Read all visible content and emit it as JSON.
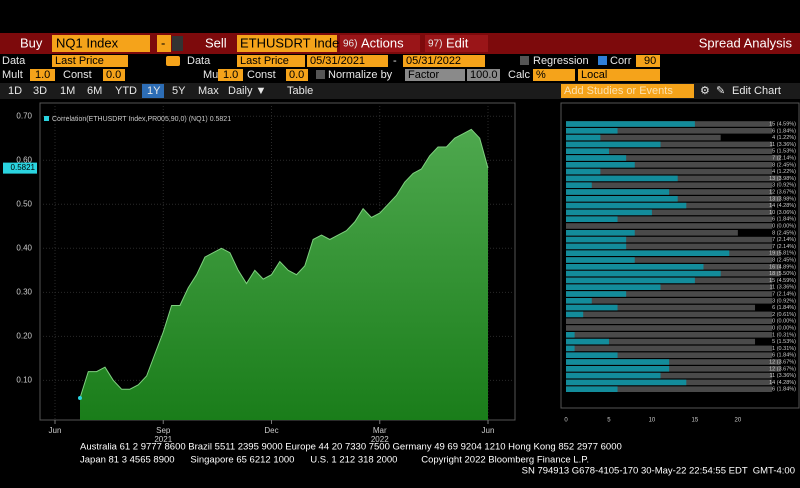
{
  "header": {
    "buy": "Buy",
    "buy_ticker": "NQ1 Index",
    "buy_dash": "-",
    "sell": "Sell",
    "sell_ticker": "ETHUSDRT Inde",
    "actions_code": "96)",
    "actions": "Actions",
    "edit_code": "97)",
    "edit": "Edit",
    "title": "Spread Analysis"
  },
  "settings_row": {
    "data_left": "Data",
    "field_left": "Last Price",
    "data_right": "Data",
    "field_right": "Last Price",
    "start_date": "05/31/2021",
    "dash": "-",
    "end_date": "05/31/2022",
    "regression": "Regression",
    "corr": "Corr",
    "corr_period": "90"
  },
  "transform_row": {
    "mult_left": "Mult",
    "mult_left_value": "1.0",
    "const_left": "Const",
    "const_left_value": "0.0",
    "mult_right": "Mult",
    "mult_right_value": "1.0",
    "const_right": "Const",
    "const_right_value": "0.0",
    "normalize": "Normalize by",
    "normalize_mode": "Factor",
    "factor": "100.0",
    "calc": "Calc",
    "calc_mode": "%",
    "timezone": "Local"
  },
  "range_bar": {
    "ranges": [
      "1D",
      "3D",
      "1M",
      "6M",
      "YTD",
      "1Y",
      "5Y",
      "Max"
    ],
    "frequency": "Daily ▼",
    "table": "Table",
    "studies": "Add Studies or Events",
    "edit_chart": "Edit Chart"
  },
  "chart_data": [
    {
      "type": "area",
      "legend": "Correlation(ETHUSDRT Index,PR005,90,0) (NQ1) 0.5821",
      "color": "#3fa03f",
      "categories": [
        "Jun",
        null,
        null,
        null,
        null,
        null,
        null,
        null,
        null,
        null,
        null,
        null,
        null,
        "Sep",
        null,
        null,
        null,
        null,
        null,
        null,
        null,
        null,
        null,
        null,
        null,
        null,
        "Dec",
        null,
        null,
        null,
        null,
        null,
        null,
        null,
        null,
        null,
        null,
        null,
        null,
        "Mar",
        null,
        null,
        null,
        null,
        null,
        null,
        null,
        null,
        null,
        null,
        null,
        null,
        "Jun"
      ],
      "year_labels": [
        "2021",
        "2022"
      ],
      "values": [
        null,
        null,
        null,
        0.06,
        0.12,
        0.12,
        0.13,
        0.1,
        0.08,
        0.08,
        0.09,
        0.11,
        0.16,
        0.21,
        0.27,
        0.27,
        0.31,
        0.34,
        0.38,
        0.39,
        0.4,
        0.39,
        0.35,
        0.32,
        0.35,
        0.33,
        0.34,
        0.37,
        0.35,
        0.34,
        0.36,
        0.42,
        0.43,
        0.42,
        0.43,
        0.44,
        0.46,
        0.49,
        0.47,
        0.48,
        0.5,
        0.52,
        0.55,
        0.57,
        0.58,
        0.61,
        0.63,
        0.63,
        0.65,
        0.66,
        0.67,
        0.65,
        0.5821
      ],
      "ylim": [
        0.01,
        0.73
      ],
      "yticks": [
        {
          "value": 0.1,
          "label": "0.10"
        },
        {
          "value": 0.2,
          "label": "0.20"
        },
        {
          "value": 0.3,
          "label": "0.30"
        },
        {
          "value": 0.4,
          "label": "0.40"
        },
        {
          "value": 0.5,
          "label": "0.50"
        },
        {
          "value": 0.6,
          "label": "0.60"
        },
        {
          "value": 0.7,
          "label": "0.70"
        }
      ],
      "grid": true
    },
    {
      "type": "hbar",
      "xlim": [
        0,
        27
      ],
      "xticks": [
        0,
        5,
        10,
        15,
        20
      ],
      "series": [
        {
          "color": "#138c9b",
          "values": [
            15,
            6,
            4,
            11,
            5,
            7,
            8,
            4,
            13,
            3,
            12,
            13,
            14,
            10,
            6,
            0,
            8,
            7,
            7,
            19,
            8,
            16,
            18,
            15,
            11,
            7,
            3,
            6,
            2,
            0,
            0,
            1,
            5,
            1,
            6,
            12,
            12,
            11,
            14,
            6
          ],
          "value_labels": [
            "15 (4.59%)",
            "6 (1.84%)",
            "4 (1.22%)",
            "11 (3.36%)",
            "5 (1.53%)",
            "7 (2.14%)",
            "8 (2.45%)",
            "4 (1.22%)",
            "13 (3.98%)",
            "3 (0.92%)",
            "12 (3.67%)",
            "13 (3.98%)",
            "14 (4.28%)",
            "10 (3.06%)",
            "6 (1.84%)",
            "0 (0.00%)",
            "8 (2.45%)",
            "7 (2.14%)",
            "7 (2.14%)",
            "19 (5.81%)",
            "8 (2.45%)",
            "16 (4.89%)",
            "18 (5.50%)",
            "15 (4.59%)",
            "11 (3.36%)",
            "7 (2.14%)",
            "3 (0.92%)",
            "6 (1.84%)",
            "2 (0.61%)",
            "0 (0.00%)",
            "0 (0.00%)",
            "1 (0.31%)",
            "5 (1.53%)",
            "1 (0.31%)",
            "6 (1.84%)",
            "12 (3.67%)",
            "12 (3.67%)",
            "11 (3.36%)",
            "14 (4.28%)",
            "6 (1.84%)"
          ]
        },
        {
          "color": "#4a4a4a",
          "values": [
            24,
            24,
            18,
            24,
            24,
            25,
            24,
            24,
            25,
            24,
            24,
            25,
            24,
            24,
            24,
            24,
            20,
            24,
            24,
            25,
            24,
            25,
            25,
            24,
            24,
            24,
            24,
            22,
            24,
            24,
            24,
            24,
            22,
            24,
            24,
            25,
            25,
            24,
            24,
            24
          ]
        }
      ]
    }
  ],
  "footer": {
    "line1": "Australia 61 2 9777 8600 Brazil 5511 2395 9000 Europe 44 20 7330 7500 Germany 49 69 9204 1210 Hong Kong 852 2977 6000",
    "line2": "Japan 81 3 4565 8900      Singapore 65 6212 1000      U.S. 1 212 318 2000         Copyright 2022 Bloomberg Finance L.P.",
    "line3": "SN 794913 G678-4105-170 30-May-22 22:54:55 EDT  GMT-4:00"
  }
}
